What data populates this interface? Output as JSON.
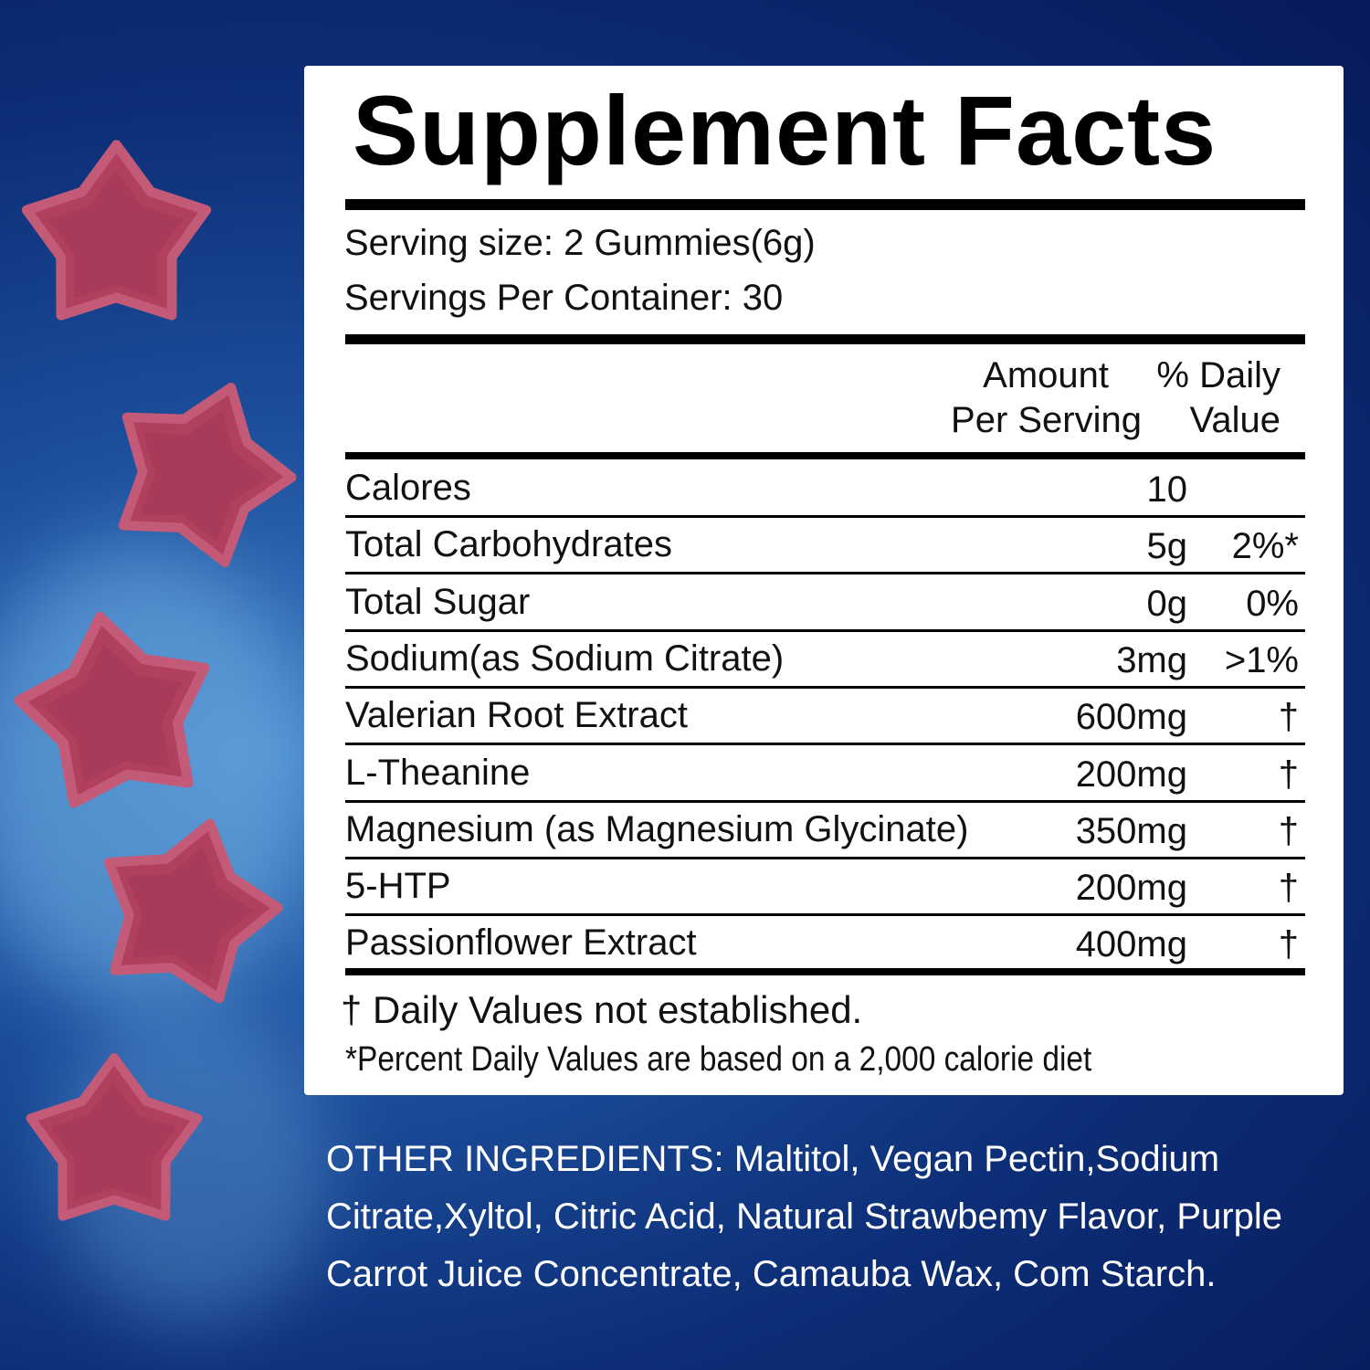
{
  "title": "Supplement Facts",
  "serving_size": "Serving size: 2 Gummies(6g)",
  "servings_per_container": "Servings Per Container: 30",
  "header": {
    "amount_line1": "Amount",
    "amount_line2": "Per Serving",
    "dv_line1": "% Daily",
    "dv_line2": "Value"
  },
  "rows": [
    {
      "name": "Calores",
      "amount": "10",
      "dv": ""
    },
    {
      "name": "Total Carbohydrates",
      "amount": "5g",
      "dv": "2%*"
    },
    {
      "name": "Total Sugar",
      "amount": "0g",
      "dv": "0%"
    },
    {
      "name": "Sodium(as Sodium Citrate)",
      "amount": "3mg",
      "dv": ">1%"
    },
    {
      "name": "Valerian Root Extract",
      "amount": "600mg",
      "dv": "†"
    },
    {
      "name": "L-Theanine",
      "amount": "200mg",
      "dv": "†"
    },
    {
      "name": "Magnesium (as Magnesium Glycinate)",
      "amount": "350mg",
      "dv": "†"
    },
    {
      "name": "5-HTP",
      "amount": "200mg",
      "dv": "†"
    },
    {
      "name": "Passionflower Extract",
      "amount": "400mg",
      "dv": "†"
    }
  ],
  "footnote_dagger": "† Daily Values not established.",
  "footnote_percent": "*Percent Daily Values are based on a 2,000 calorie diet",
  "other_ingredients": "OTHER INGREDIENTS: Maltitol, Vegan Pectin,Sodium Citrate,Xyltol, Citric Acid, Natural Strawbemy Flavor, Purple Carrot Juice Concentrate, Camauba Wax, Com Starch.",
  "colors": {
    "gummy": "#b0405e",
    "background": "#0d2f78",
    "panel": "#ffffff"
  }
}
